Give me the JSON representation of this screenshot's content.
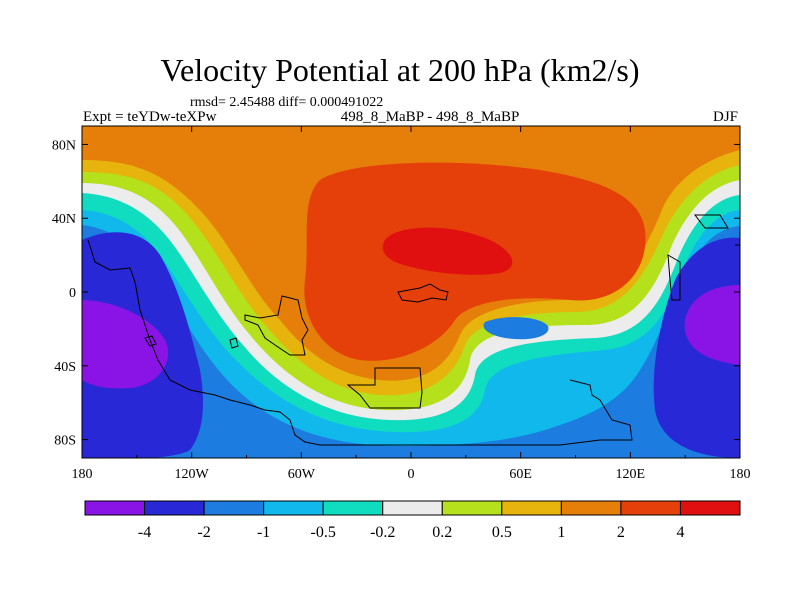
{
  "chart_data": {
    "type": "contour-map",
    "title": "Velocity Potential at 200 hPa (km2/s)",
    "stats_text": "rmsd= 2.45488  diff= 0.000491022",
    "left_label": "Expt = teYDw-teXPw",
    "center_label": "498_8_MaBP - 498_8_MaBP",
    "right_label": "DJF",
    "x_ticks": [
      "180",
      "120W",
      "60W",
      "0",
      "60E",
      "120E",
      "180"
    ],
    "x_tick_values": [
      -180,
      -120,
      -60,
      0,
      60,
      120,
      180
    ],
    "y_ticks": [
      "80N",
      "40N",
      "0",
      "40S",
      "80S"
    ],
    "y_tick_values": [
      80,
      40,
      0,
      -40,
      -80
    ],
    "xlim": [
      -180,
      180
    ],
    "ylim": [
      -90,
      90
    ],
    "colorbar": {
      "labels": [
        "-4",
        "-2",
        "-1",
        "-0.5",
        "-0.2",
        "0.2",
        "0.5",
        "1",
        "2",
        "4"
      ],
      "levels": [
        -4,
        -2,
        -1,
        -0.5,
        -0.2,
        0.2,
        0.5,
        1,
        2,
        4
      ],
      "colors": [
        "#8a14e6",
        "#2828d6",
        "#1c7ce0",
        "#10b8ec",
        "#10dcc0",
        "#ececec",
        "#b4e01c",
        "#e6b40c",
        "#e67e0a",
        "#e6400a",
        "#e01010"
      ]
    },
    "features": [
      {
        "name": "negative center",
        "lon": -150,
        "lat": -25,
        "min_level": "<-4"
      },
      {
        "name": "negative center",
        "lon": 165,
        "lat": -20,
        "min_level": "<-4"
      },
      {
        "name": "positive center",
        "lon": 20,
        "lat": 25,
        "max_level": "2 to 4"
      }
    ]
  }
}
